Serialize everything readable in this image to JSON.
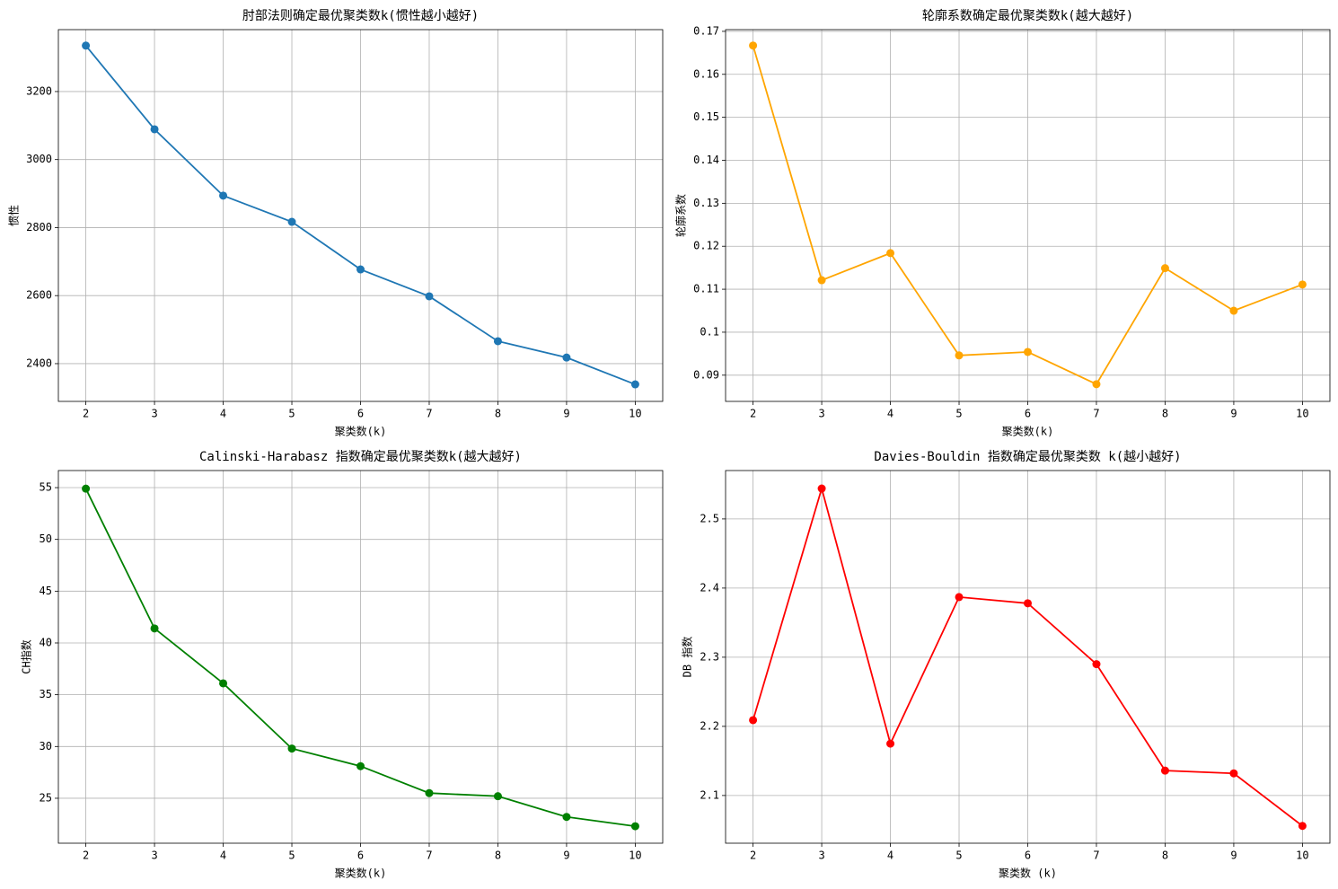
{
  "chart_data": [
    {
      "type": "line",
      "title": "肘部法则确定最优聚类数k(惯性越小越好)",
      "xlabel": "聚类数(k)",
      "ylabel": "惯性",
      "x": [
        2,
        3,
        4,
        5,
        6,
        7,
        8,
        9,
        10
      ],
      "values": [
        3335,
        3089,
        2894,
        2817,
        2677,
        2598,
        2466,
        2418,
        2339
      ],
      "color": "#1f77b4",
      "marker": "o",
      "grid": true,
      "xlim": [
        1.6,
        10.4
      ],
      "xticks": [
        2,
        3,
        4,
        5,
        6,
        7,
        8,
        9,
        10
      ],
      "ylim": [
        2289,
        3382
      ],
      "yticks": [
        2400,
        2600,
        2800,
        3000,
        3200
      ]
    },
    {
      "type": "line",
      "title": "轮廓系数确定最优聚类数k(越大越好)",
      "xlabel": "聚类数(k)",
      "ylabel": "轮廓系数",
      "x": [
        2,
        3,
        4,
        5,
        6,
        7,
        8,
        9,
        10
      ],
      "values": [
        0.1667,
        0.1121,
        0.1184,
        0.0946,
        0.0954,
        0.0879,
        0.1149,
        0.105,
        0.1111
      ],
      "color": "#ffa500",
      "marker": "o",
      "grid": true,
      "xlim": [
        1.6,
        10.4
      ],
      "xticks": [
        2,
        3,
        4,
        5,
        6,
        7,
        8,
        9,
        10
      ],
      "ylim": [
        0.0839,
        0.1704
      ],
      "yticks": [
        0.09,
        0.1,
        0.11,
        0.12,
        0.13,
        0.14,
        0.15,
        0.16,
        0.17
      ]
    },
    {
      "type": "line",
      "title": "Calinski-Harabasz 指数确定最优聚类数k(越大越好)",
      "xlabel": "聚类数(k)",
      "ylabel": "CH指数",
      "x": [
        2,
        3,
        4,
        5,
        6,
        7,
        8,
        9,
        10
      ],
      "values": [
        54.9,
        41.4,
        36.1,
        29.8,
        28.1,
        25.5,
        25.2,
        23.2,
        22.3
      ],
      "color": "#008000",
      "marker": "o",
      "grid": true,
      "xlim": [
        1.6,
        10.4
      ],
      "xticks": [
        2,
        3,
        4,
        5,
        6,
        7,
        8,
        9,
        10
      ],
      "ylim": [
        20.66,
        56.65
      ],
      "yticks": [
        25,
        30,
        35,
        40,
        45,
        50,
        55
      ]
    },
    {
      "type": "line",
      "title": "Davies-Bouldin 指数确定最优聚类数 k(越小越好)",
      "xlabel": "聚类数 (k)",
      "ylabel": "DB 指数",
      "x": [
        2,
        3,
        4,
        5,
        6,
        7,
        8,
        9,
        10
      ],
      "values": [
        2.209,
        2.544,
        2.175,
        2.387,
        2.378,
        2.29,
        2.136,
        2.132,
        2.056
      ],
      "color": "#ff0000",
      "marker": "o",
      "grid": true,
      "xlim": [
        1.6,
        10.4
      ],
      "xticks": [
        2,
        3,
        4,
        5,
        6,
        7,
        8,
        9,
        10
      ],
      "ylim": [
        2.031,
        2.57
      ],
      "yticks": [
        2.1,
        2.2,
        2.3,
        2.4,
        2.5
      ]
    }
  ]
}
